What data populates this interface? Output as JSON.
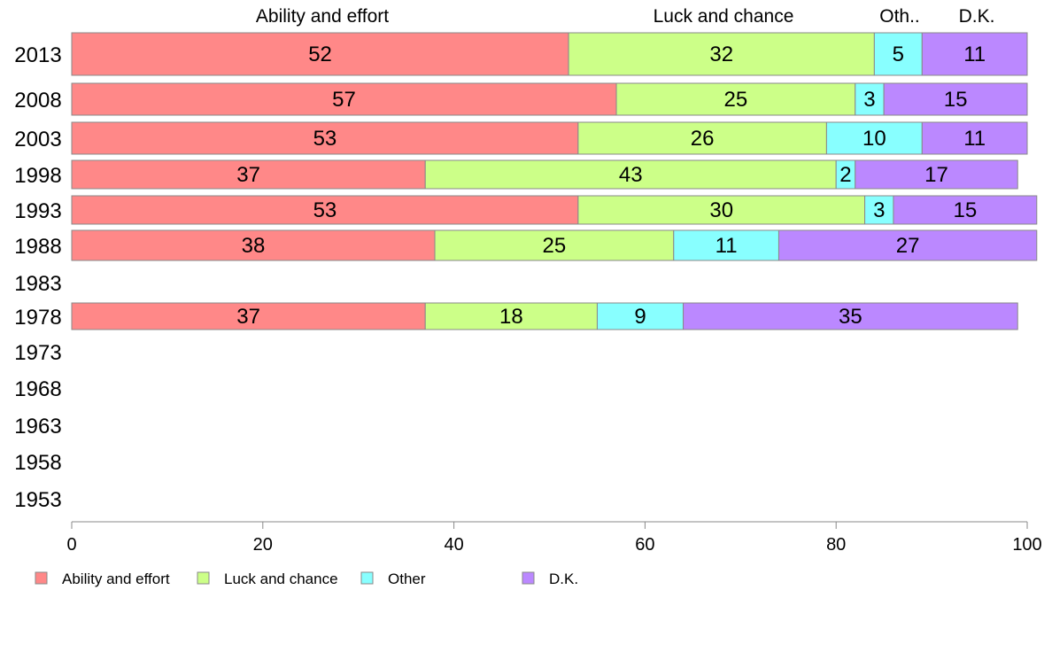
{
  "chart_data": {
    "type": "bar",
    "orientation": "horizontal",
    "stacked": true,
    "categories": [
      "2013",
      "2008",
      "2003",
      "1998",
      "1993",
      "1988",
      "1983",
      "1978",
      "1973",
      "1968",
      "1963",
      "1958",
      "1953"
    ],
    "series": [
      {
        "name": "Ability and effort",
        "color": "#ff8888",
        "values": [
          52,
          57,
          53,
          37,
          53,
          38,
          null,
          37,
          null,
          null,
          null,
          null,
          null
        ]
      },
      {
        "name": "Luck and chance",
        "color": "#ccff88",
        "values": [
          32,
          25,
          26,
          43,
          30,
          25,
          null,
          18,
          null,
          null,
          null,
          null,
          null
        ]
      },
      {
        "name": "Other",
        "color": "#88ffff",
        "values": [
          5,
          3,
          10,
          2,
          3,
          11,
          null,
          9,
          null,
          null,
          null,
          null,
          null
        ]
      },
      {
        "name": "D.K.",
        "color": "#bb88ff",
        "values": [
          11,
          15,
          11,
          17,
          15,
          27,
          null,
          35,
          null,
          null,
          null,
          null,
          null
        ]
      }
    ],
    "column_headers": [
      "Ability and effort",
      "Luck and chance",
      "Oth..",
      "D.K."
    ],
    "xlim": [
      0,
      100
    ],
    "xticks": [
      "0",
      "20",
      "40",
      "60",
      "80",
      "100"
    ],
    "legend_position": "bottom-left",
    "grid": false
  }
}
